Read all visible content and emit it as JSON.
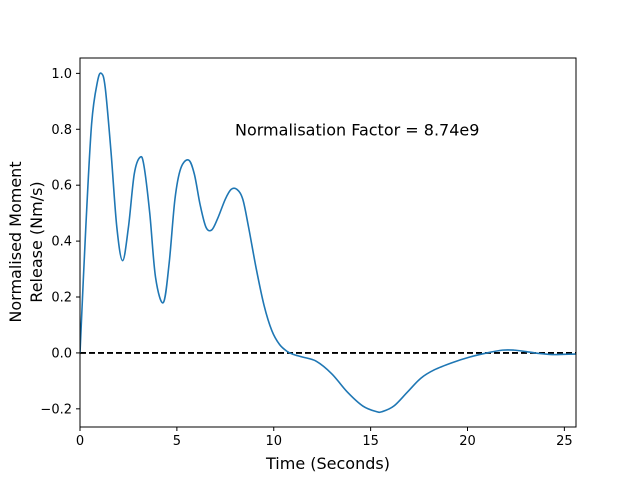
{
  "chart_data": {
    "type": "line",
    "title": "",
    "xlabel": "Time (Seconds)",
    "ylabel_lines": [
      "Normalised Moment",
      "Release (Nm/s)"
    ],
    "xlim": [
      0,
      25.6
    ],
    "ylim": [
      -0.265,
      1.055
    ],
    "xticks": [
      0,
      5,
      10,
      15,
      20,
      25
    ],
    "yticks": [
      -0.2,
      0.0,
      0.2,
      0.4,
      0.6,
      0.8,
      1.0
    ],
    "ytick_labels": [
      "−0.2",
      "0.0",
      "0.2",
      "0.4",
      "0.6",
      "0.8",
      "1.0"
    ],
    "grid": false,
    "annotation": {
      "text": "Normalisation Factor = 8.74e9",
      "x": 8.0,
      "y": 0.8
    },
    "reference_line": {
      "y": 0.0,
      "style": "dashed",
      "color": "#000000"
    },
    "series": [
      {
        "color": "#1f77b4",
        "x": [
          0,
          0.3,
          0.6,
          0.9,
          1.1,
          1.3,
          1.6,
          1.9,
          2.2,
          2.5,
          2.8,
          3.1,
          3.3,
          3.6,
          3.9,
          4.3,
          4.6,
          4.9,
          5.2,
          5.6,
          5.9,
          6.2,
          6.5,
          6.8,
          7.1,
          7.5,
          7.8,
          8.1,
          8.4,
          8.7,
          9.1,
          9.5,
          9.9,
          10.3,
          10.7,
          11.0,
          11.5,
          12.2,
          13.0,
          13.8,
          14.6,
          15.3,
          15.6,
          16.2,
          16.9,
          17.6,
          18.3,
          19.2,
          20.1,
          21.0,
          21.8,
          22.4,
          23.0,
          23.7,
          24.4,
          25.0,
          25.6
        ],
        "y": [
          0.0,
          0.45,
          0.82,
          0.97,
          1.0,
          0.95,
          0.72,
          0.45,
          0.33,
          0.45,
          0.64,
          0.7,
          0.67,
          0.5,
          0.27,
          0.18,
          0.32,
          0.55,
          0.66,
          0.69,
          0.64,
          0.53,
          0.45,
          0.44,
          0.48,
          0.55,
          0.585,
          0.585,
          0.55,
          0.45,
          0.3,
          0.17,
          0.08,
          0.03,
          0.005,
          -0.005,
          -0.015,
          -0.03,
          -0.075,
          -0.14,
          -0.19,
          -0.21,
          -0.21,
          -0.19,
          -0.14,
          -0.09,
          -0.06,
          -0.035,
          -0.015,
          0.0,
          0.01,
          0.01,
          0.005,
          -0.002,
          -0.006,
          -0.005,
          -0.004
        ]
      }
    ]
  }
}
